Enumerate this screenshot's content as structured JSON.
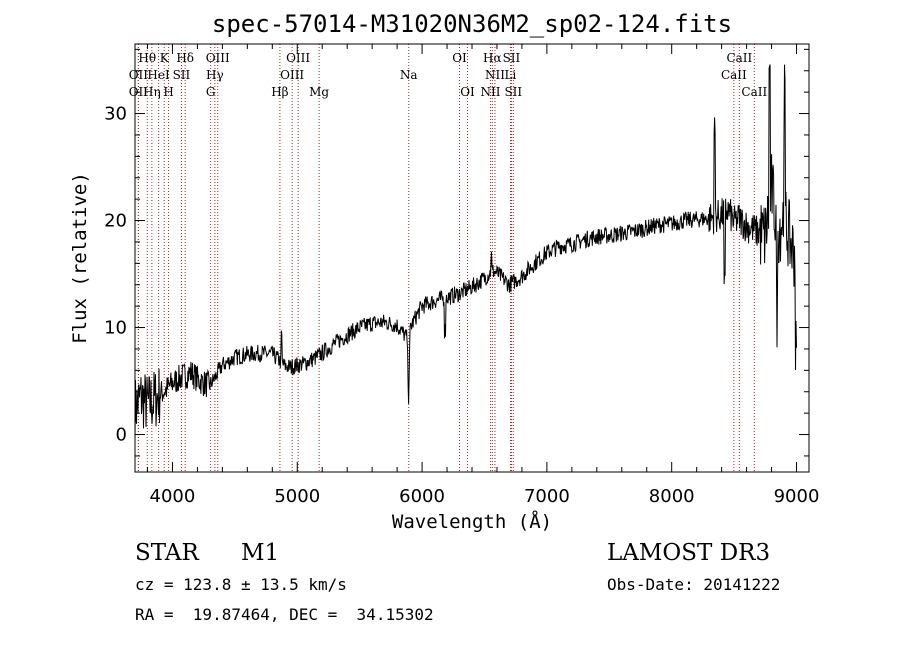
{
  "chart_data": {
    "type": "line",
    "title": "spec-57014-M31020N36M2_sp02-124.fits",
    "xlabel": "Wavelength (Å)",
    "ylabel": "Flux (relative)",
    "xlim": [
      3700,
      9100
    ],
    "ylim": [
      -3.5,
      36.5
    ],
    "xticks": [
      4000,
      5000,
      6000,
      7000,
      8000,
      9000
    ],
    "yticks": [
      0,
      10,
      20,
      30
    ],
    "grid": false,
    "legend": "none",
    "line_color": "#000000",
    "marker_color": "#b22222",
    "spectrum": {
      "x": [
        3700,
        3750,
        3800,
        3850,
        3900,
        3950,
        4000,
        4050,
        4100,
        4150,
        4200,
        4250,
        4300,
        4350,
        4400,
        4450,
        4500,
        4600,
        4700,
        4800,
        4850,
        4900,
        4950,
        5000,
        5050,
        5100,
        5150,
        5200,
        5300,
        5400,
        5500,
        5600,
        5700,
        5800,
        5880,
        5892,
        5905,
        5950,
        6000,
        6100,
        6200,
        6300,
        6400,
        6500,
        6560,
        6600,
        6700,
        6800,
        6900,
        7000,
        7100,
        7200,
        7300,
        7400,
        7500,
        7600,
        7700,
        7800,
        7900,
        8000,
        8100,
        8200,
        8300,
        8400,
        8450,
        8500,
        8540,
        8600,
        8650,
        8700,
        8750,
        8800,
        8850,
        8900,
        8950,
        9000
      ],
      "y": [
        2.5,
        3.5,
        2.8,
        3.2,
        3.8,
        4.2,
        4.8,
        5.2,
        5.5,
        5.8,
        5.2,
        4.8,
        4.6,
        5.5,
        6.5,
        6.8,
        7.2,
        7.5,
        7.6,
        7.5,
        7.0,
        6.4,
        6.3,
        6.5,
        6.6,
        6.9,
        7.2,
        7.6,
        8.5,
        9.3,
        10.0,
        10.4,
        10.5,
        10.2,
        9.0,
        3.5,
        10.0,
        11.0,
        12.0,
        12.5,
        12.8,
        13.2,
        13.8,
        14.6,
        15.3,
        15.1,
        14.0,
        14.8,
        16.0,
        17.0,
        17.6,
        17.8,
        18.2,
        18.5,
        18.6,
        18.8,
        19.0,
        19.3,
        19.6,
        19.7,
        20.0,
        20.1,
        20.2,
        20.5,
        21.0,
        19.8,
        20.2,
        19.5,
        19.2,
        18.8,
        18.5,
        23.0,
        19.0,
        20.5,
        18.0,
        16.5
      ]
    },
    "lines": [
      {
        "label": "Hθ",
        "wl": 3798,
        "row": 0
      },
      {
        "label": "OII",
        "wl": 3727,
        "row": 1
      },
      {
        "label": "OII",
        "wl": 3727,
        "row": 2
      },
      {
        "label": "HeI",
        "wl": 3889,
        "row": 1
      },
      {
        "label": "Hη",
        "wl": 3835,
        "row": 2
      },
      {
        "label": "K",
        "wl": 3934,
        "row": 0
      },
      {
        "label": "SII",
        "wl": 4072,
        "row": 1
      },
      {
        "label": "H",
        "wl": 3969,
        "row": 2
      },
      {
        "label": "Hδ",
        "wl": 4102,
        "row": 0
      },
      {
        "label": "OIII",
        "wl": 4363,
        "row": 0
      },
      {
        "label": "Hγ",
        "wl": 4340,
        "row": 1
      },
      {
        "label": "G",
        "wl": 4306,
        "row": 2
      },
      {
        "label": "OIII",
        "wl": 5007,
        "row": 0
      },
      {
        "label": "OIII",
        "wl": 4959,
        "row": 1
      },
      {
        "label": "Hβ",
        "wl": 4861,
        "row": 2
      },
      {
        "label": "Mg",
        "wl": 5175,
        "row": 2
      },
      {
        "label": "Na",
        "wl": 5893,
        "row": 1
      },
      {
        "label": "OI",
        "wl": 6300,
        "row": 0
      },
      {
        "label": "OI",
        "wl": 6364,
        "row": 2
      },
      {
        "label": "Hα",
        "wl": 6563,
        "row": 0
      },
      {
        "label": "SII",
        "wl": 6716,
        "row": 0
      },
      {
        "label": "NII",
        "wl": 6584,
        "row": 1
      },
      {
        "label": "Li",
        "wl": 6708,
        "row": 1
      },
      {
        "label": "NII",
        "wl": 6548,
        "row": 2
      },
      {
        "label": "SII",
        "wl": 6731,
        "row": 2
      },
      {
        "label": "CaII",
        "wl": 8542,
        "row": 0
      },
      {
        "label": "CaII",
        "wl": 8498,
        "row": 1
      },
      {
        "label": "CaII",
        "wl": 8662,
        "row": 2
      }
    ]
  },
  "info": {
    "class_label": "STAR",
    "subclass": "M1",
    "survey": "LAMOST DR3",
    "cz": "cz = 123.8 ± 13.5 km/s",
    "obs_date": "Obs-Date: 20141222",
    "coords": "RA =  19.87464, DEC =  34.15302"
  }
}
